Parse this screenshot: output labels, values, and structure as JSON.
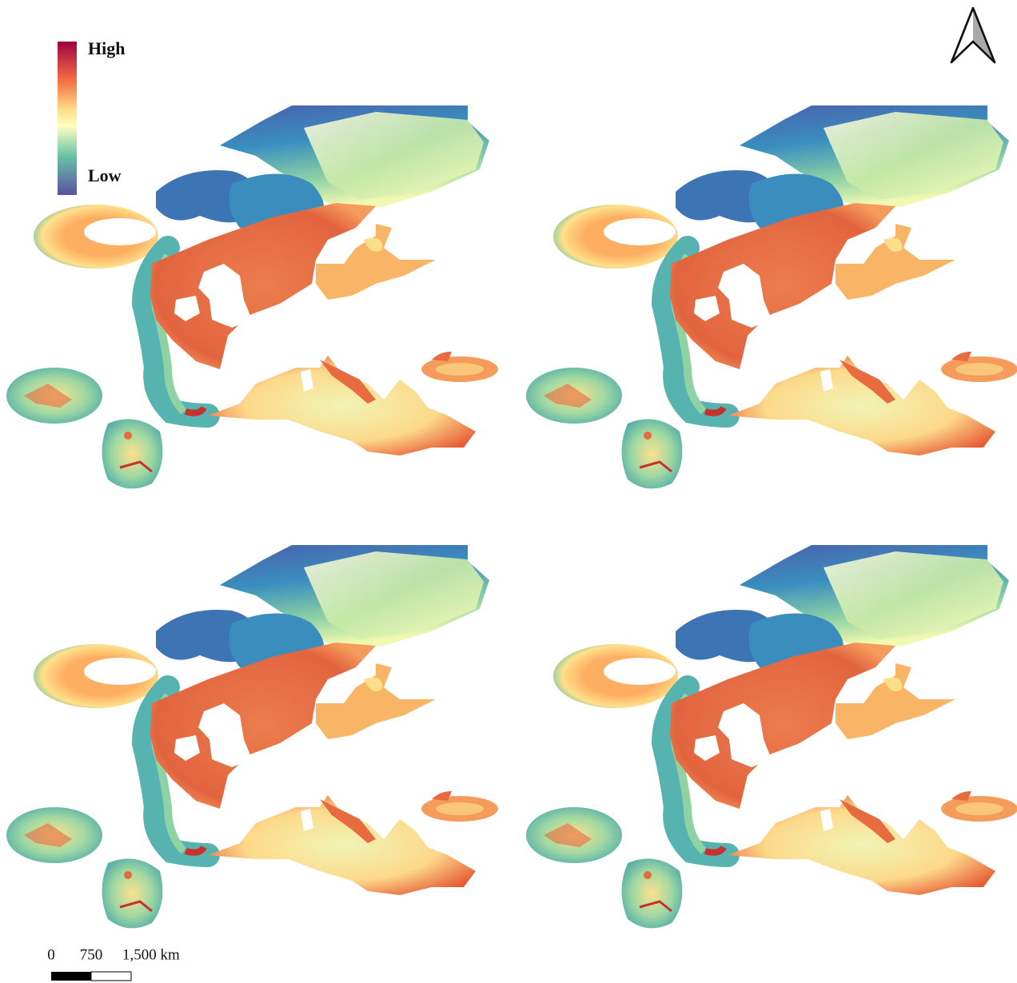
{
  "legend": {
    "high": "High",
    "low": "Low"
  },
  "scale_bar": {
    "labels": [
      "0",
      "750",
      "1,500 km"
    ]
  }
}
